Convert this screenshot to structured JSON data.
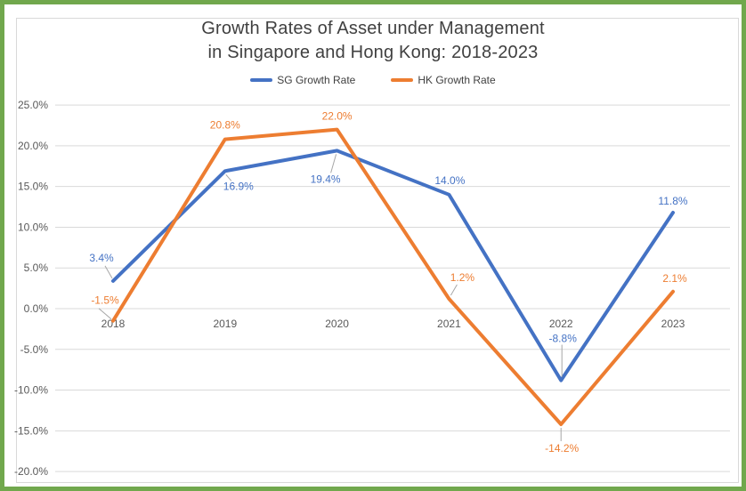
{
  "title": {
    "line1": "Growth Rates of Asset under Management",
    "line2": "in Singapore and Hong Kong: 2018-2023"
  },
  "legend": {
    "items": [
      {
        "label": "SG Growth Rate",
        "color": "#4472C4"
      },
      {
        "label": "HK Growth Rate",
        "color": "#ED7D31"
      }
    ]
  },
  "chart_data": {
    "type": "line",
    "title": "Growth Rates of Asset under Management in Singapore and Hong Kong: 2018-2023",
    "categories": [
      "2018",
      "2019",
      "2020",
      "2021",
      "2022",
      "2023"
    ],
    "series": [
      {
        "name": "SG Growth Rate",
        "color": "#4472C4",
        "values": [
          3.4,
          16.9,
          19.4,
          14.0,
          -8.8,
          11.8
        ],
        "labels": [
          "3.4%",
          "16.9%",
          "19.4%",
          "14.0%",
          "-8.8%",
          "11.8%"
        ]
      },
      {
        "name": "HK Growth Rate",
        "color": "#ED7D31",
        "values": [
          -1.5,
          20.8,
          22.0,
          1.2,
          -14.2,
          2.1
        ],
        "labels": [
          "-1.5%",
          "20.8%",
          "22.0%",
          "1.2%",
          "-14.2%",
          "2.1%"
        ]
      }
    ],
    "y_axis": {
      "min": -20,
      "max": 25,
      "step": 5,
      "tick_labels": [
        "25.0%",
        "20.0%",
        "15.0%",
        "10.0%",
        "5.0%",
        "0.0%",
        "-5.0%",
        "-10.0%",
        "-15.0%",
        "-20.0%"
      ]
    },
    "x_axis": {
      "position_value": 0
    },
    "grid": true,
    "legend_position": "top",
    "colors": {
      "sg_series": "#4472C4",
      "hk_series": "#ED7D31",
      "gridline": "#D9D9D9",
      "axis_text": "#595959",
      "leader_line": "#A6A6A6",
      "chart_border": "#D9D9D9",
      "outer_border": "#71A84D",
      "title_text": "#404040"
    }
  }
}
